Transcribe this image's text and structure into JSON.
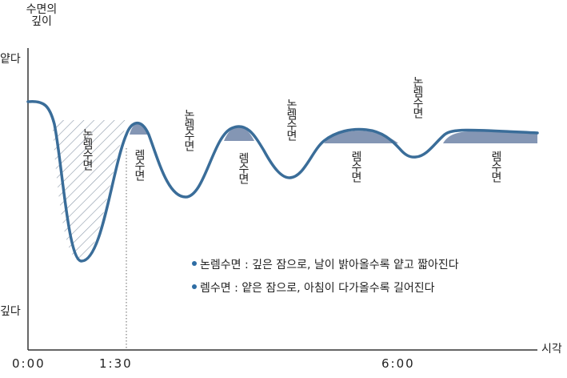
{
  "axis": {
    "y_title_line1": "수면의",
    "y_title_line2": "깊이",
    "y_top": "얕다",
    "y_bottom": "깊다",
    "x_title": "시각",
    "x_ticks": [
      "0:00",
      "1:30",
      "6:00"
    ]
  },
  "regions": {
    "nrem1": "논렘수면",
    "rem1": "렘수면",
    "nrem2": "논렘수면",
    "rem2": "렘수면",
    "nrem3": "논렘수면",
    "rem3": "렘수면",
    "nrem4": "논렘수면",
    "rem4": "렘수면"
  },
  "legend": {
    "nrem": "논렘수면 : 깊은 잠으로, 날이 밝아올수록 얕고 짧아진다",
    "rem": "렘수면 : 얕은 잠으로, 아침이 다가올수록 길어진다"
  },
  "colors": {
    "curve": "#3a6d99",
    "rem_fill": "#8496b4",
    "hatch": "#8a97a8",
    "axis": "#333333"
  }
}
